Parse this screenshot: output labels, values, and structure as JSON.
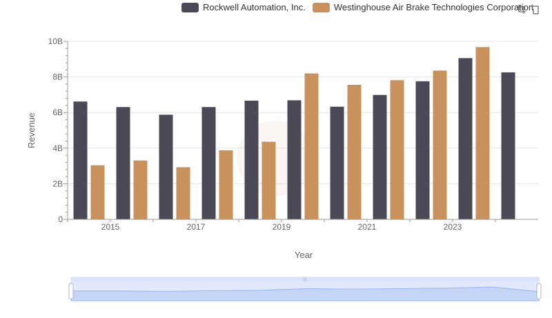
{
  "legend": [
    {
      "label": "Rockwell Automation, Inc.",
      "color": "#4a4955"
    },
    {
      "label": "Westinghouse Air Brake Technologies Corporation",
      "color": "#c9915c"
    }
  ],
  "toolbox": {
    "zoom_icon": "zoom-icon",
    "restore_icon": "restore-icon"
  },
  "chart_data": {
    "type": "bar",
    "xlabel": "Year",
    "ylabel": "Revenue",
    "ylim": [
      0,
      10
    ],
    "yunit": "B",
    "yticks": [
      "0",
      "2B",
      "4B",
      "6B",
      "8B",
      "10B"
    ],
    "x_tick_labels": [
      "2015",
      "2017",
      "2019",
      "2021",
      "2023"
    ],
    "categories": [
      "2014",
      "2015",
      "2016",
      "2017",
      "2018",
      "2019",
      "2020",
      "2021",
      "2022",
      "2023",
      "2024"
    ],
    "series": [
      {
        "name": "Rockwell Automation, Inc.",
        "color": "#4a4955",
        "values": [
          6.62,
          6.31,
          5.88,
          6.31,
          6.67,
          6.69,
          6.33,
          6.99,
          7.76,
          9.06,
          8.26
        ]
      },
      {
        "name": "Westinghouse Air Brake Technologies Corporation",
        "color": "#c9915c",
        "values": [
          3.04,
          3.31,
          2.93,
          3.88,
          4.36,
          8.2,
          7.56,
          7.82,
          8.36,
          9.68,
          null
        ]
      }
    ],
    "grid": true,
    "legend_position": "top-right",
    "dataZoom": true
  }
}
